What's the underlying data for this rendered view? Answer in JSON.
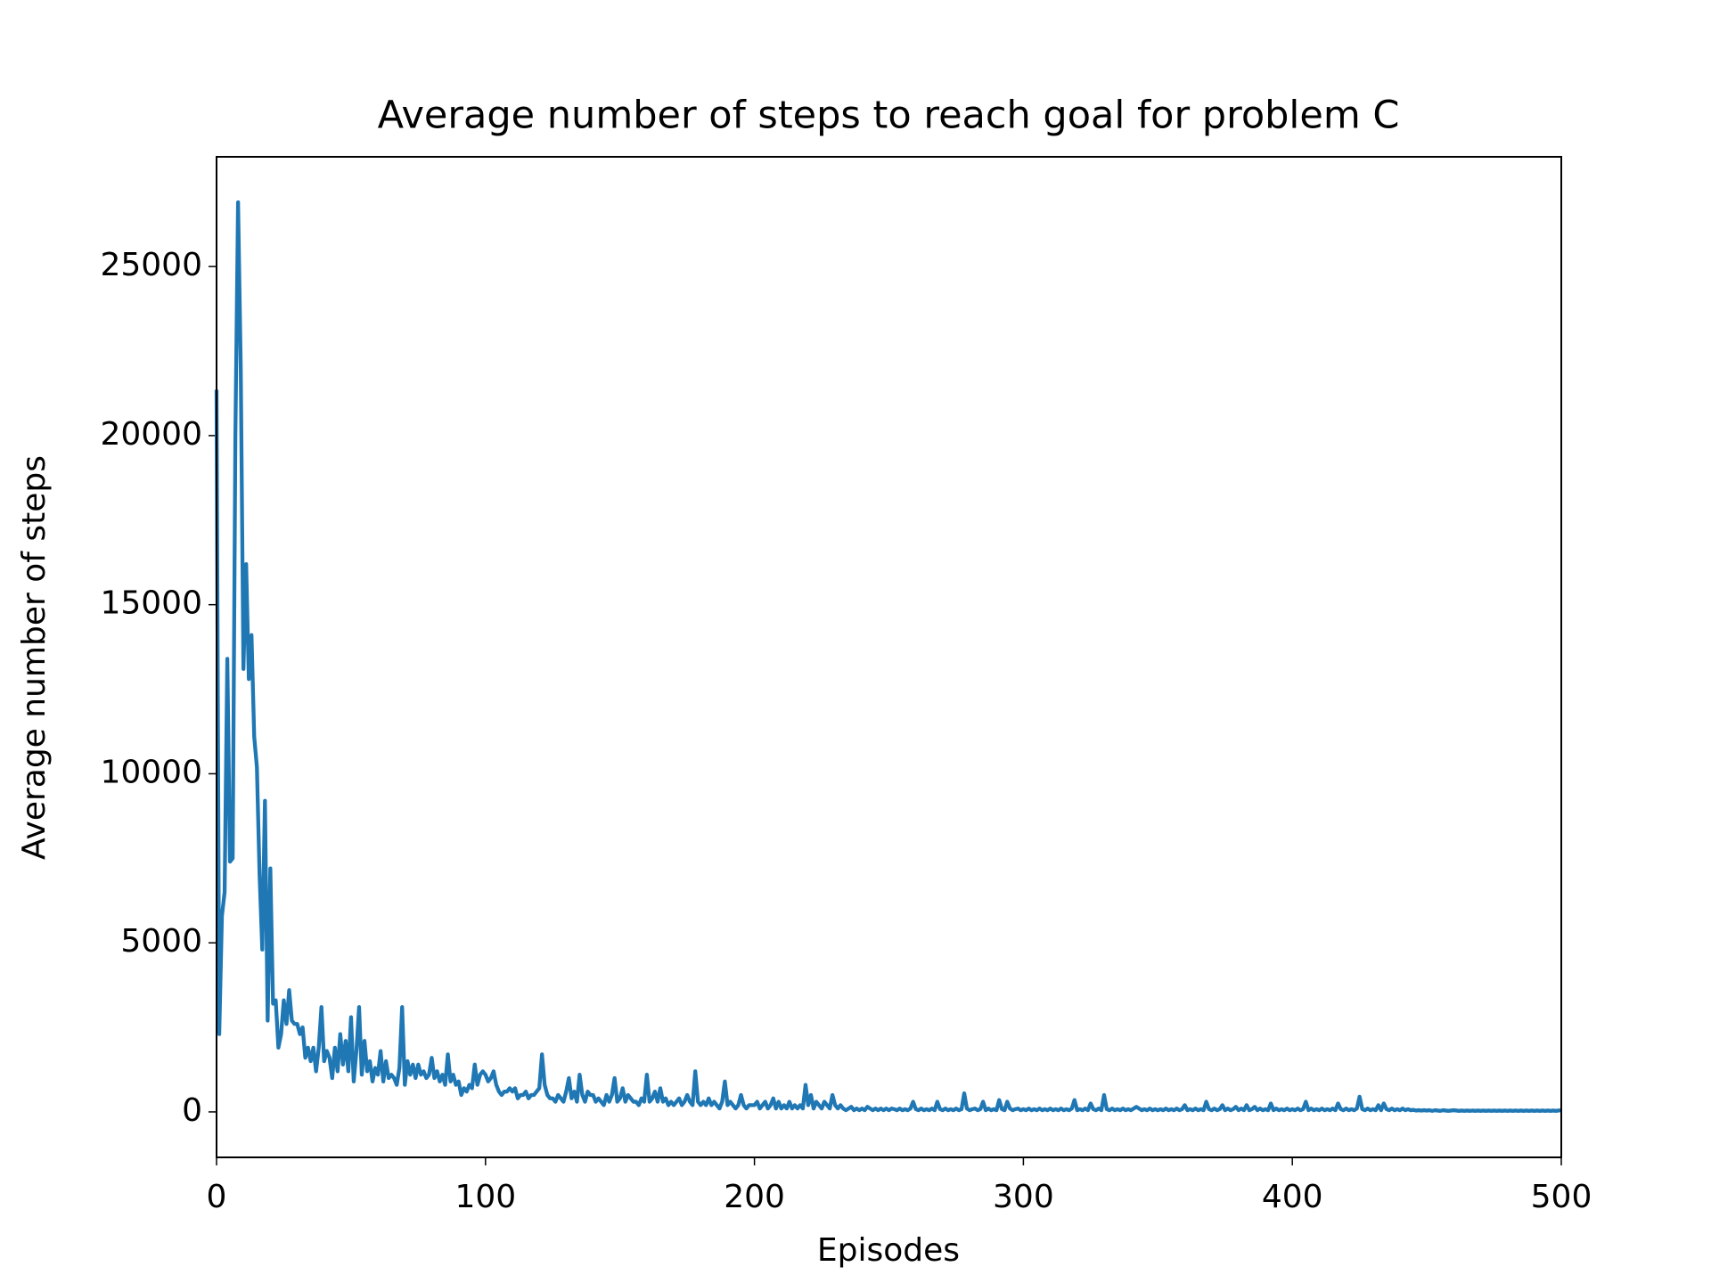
{
  "chart_data": {
    "type": "line",
    "title": "Average number of steps to reach goal for problem C",
    "x_label": "Episodes",
    "y_label": "Average number of steps",
    "xlim": [
      0,
      500
    ],
    "xticks": [
      0,
      100,
      200,
      300,
      400,
      500
    ],
    "ylim": [
      -1345,
      28245
    ],
    "yticks": [
      0,
      5000,
      10000,
      15000,
      20000,
      25000
    ],
    "grid": false,
    "series": [
      {
        "color": "#1f77b4",
        "x": [
          0,
          1,
          2,
          3,
          4,
          5,
          6,
          7,
          8,
          9,
          10,
          11,
          12,
          13,
          14,
          15,
          16,
          17,
          18,
          19,
          20,
          21,
          22,
          23,
          24,
          25,
          26,
          27,
          28,
          29,
          30,
          31,
          32,
          33,
          34,
          35,
          36,
          37,
          38,
          39,
          40,
          41,
          42,
          43,
          44,
          45,
          46,
          47,
          48,
          49,
          50,
          51,
          52,
          53,
          54,
          55,
          56,
          57,
          58,
          59,
          60,
          61,
          62,
          63,
          64,
          65,
          66,
          67,
          68,
          69,
          70,
          71,
          72,
          73,
          74,
          75,
          76,
          77,
          78,
          79,
          80,
          81,
          82,
          83,
          84,
          85,
          86,
          87,
          88,
          89,
          90,
          91,
          92,
          93,
          94,
          95,
          96,
          97,
          98,
          99,
          100,
          101,
          102,
          103,
          104,
          105,
          106,
          107,
          108,
          109,
          110,
          111,
          112,
          113,
          114,
          115,
          116,
          117,
          118,
          119,
          120,
          121,
          122,
          123,
          124,
          125,
          126,
          127,
          128,
          129,
          130,
          131,
          132,
          133,
          134,
          135,
          136,
          137,
          138,
          139,
          140,
          141,
          142,
          143,
          144,
          145,
          146,
          147,
          148,
          149,
          150,
          151,
          152,
          153,
          154,
          155,
          156,
          157,
          158,
          159,
          160,
          161,
          162,
          163,
          164,
          165,
          166,
          167,
          168,
          169,
          170,
          171,
          172,
          173,
          174,
          175,
          176,
          177,
          178,
          179,
          180,
          181,
          182,
          183,
          184,
          185,
          186,
          187,
          188,
          189,
          190,
          191,
          192,
          193,
          194,
          195,
          196,
          197,
          198,
          199,
          200,
          201,
          202,
          203,
          204,
          205,
          206,
          207,
          208,
          209,
          210,
          211,
          212,
          213,
          214,
          215,
          216,
          217,
          218,
          219,
          220,
          221,
          222,
          223,
          224,
          225,
          226,
          227,
          228,
          229,
          230,
          231,
          232,
          233,
          234,
          235,
          236,
          237,
          238,
          239,
          240,
          241,
          242,
          243,
          244,
          245,
          246,
          247,
          248,
          249,
          250,
          251,
          252,
          253,
          254,
          255,
          256,
          257,
          258,
          259,
          260,
          261,
          262,
          263,
          264,
          265,
          266,
          267,
          268,
          269,
          270,
          271,
          272,
          273,
          274,
          275,
          276,
          277,
          278,
          279,
          280,
          281,
          282,
          283,
          284,
          285,
          286,
          287,
          288,
          289,
          290,
          291,
          292,
          293,
          294,
          295,
          296,
          297,
          298,
          299,
          300,
          301,
          302,
          303,
          304,
          305,
          306,
          307,
          308,
          309,
          310,
          311,
          312,
          313,
          314,
          315,
          316,
          317,
          318,
          319,
          320,
          321,
          322,
          323,
          324,
          325,
          326,
          327,
          328,
          329,
          330,
          331,
          332,
          333,
          334,
          335,
          336,
          337,
          338,
          339,
          340,
          341,
          342,
          343,
          344,
          345,
          346,
          347,
          348,
          349,
          350,
          351,
          352,
          353,
          354,
          355,
          356,
          357,
          358,
          359,
          360,
          361,
          362,
          363,
          364,
          365,
          366,
          367,
          368,
          369,
          370,
          371,
          372,
          373,
          374,
          375,
          376,
          377,
          378,
          379,
          380,
          381,
          382,
          383,
          384,
          385,
          386,
          387,
          388,
          389,
          390,
          391,
          392,
          393,
          394,
          395,
          396,
          397,
          398,
          399,
          400,
          401,
          402,
          403,
          404,
          405,
          406,
          407,
          408,
          409,
          410,
          411,
          412,
          413,
          414,
          415,
          416,
          417,
          418,
          419,
          420,
          421,
          422,
          423,
          424,
          425,
          426,
          427,
          428,
          429,
          430,
          431,
          432,
          433,
          434,
          435,
          436,
          437,
          438,
          439,
          440,
          441,
          442,
          443,
          444,
          445,
          446,
          447,
          448,
          449,
          450,
          451,
          452,
          453,
          454,
          455,
          456,
          457,
          458,
          459,
          460,
          461,
          462,
          463,
          464,
          465,
          466,
          467,
          468,
          469,
          470,
          471,
          472,
          473,
          474,
          475,
          476,
          477,
          478,
          479,
          480,
          481,
          482,
          483,
          484,
          485,
          486,
          487,
          488,
          489,
          490,
          491,
          492,
          493,
          494,
          495,
          496,
          497,
          498,
          499
        ],
        "values": [
          21300,
          2300,
          5800,
          6500,
          13400,
          7400,
          7500,
          20000,
          26900,
          22000,
          13100,
          16200,
          12800,
          14100,
          11100,
          10200,
          7000,
          4800,
          9200,
          2700,
          7200,
          3200,
          3300,
          1900,
          2300,
          3300,
          2600,
          3600,
          2700,
          2600,
          2600,
          2300,
          2500,
          1600,
          1900,
          1500,
          1900,
          1200,
          1900,
          3100,
          1500,
          1800,
          1600,
          1000,
          1900,
          1200,
          2300,
          1400,
          2100,
          1200,
          2800,
          900,
          1800,
          3100,
          1100,
          2100,
          1200,
          1500,
          900,
          1300,
          1100,
          1800,
          900,
          1500,
          1000,
          1100,
          1000,
          800,
          1300,
          3100,
          800,
          1500,
          1100,
          1400,
          1000,
          1400,
          1100,
          1200,
          1000,
          1100,
          1600,
          1000,
          1200,
          900,
          1100,
          800,
          1700,
          900,
          1100,
          800,
          900,
          500,
          700,
          600,
          800,
          700,
          1400,
          800,
          1100,
          1200,
          1100,
          900,
          1000,
          1200,
          800,
          600,
          500,
          600,
          600,
          700,
          600,
          700,
          400,
          500,
          500,
          600,
          400,
          500,
          500,
          600,
          700,
          1700,
          800,
          500,
          400,
          400,
          300,
          500,
          400,
          300,
          600,
          1000,
          400,
          600,
          300,
          1100,
          500,
          300,
          600,
          500,
          500,
          300,
          400,
          300,
          200,
          500,
          300,
          500,
          1000,
          300,
          400,
          700,
          300,
          500,
          400,
          300,
          300,
          200,
          400,
          300,
          1100,
          300,
          400,
          600,
          300,
          700,
          300,
          400,
          200,
          300,
          200,
          300,
          400,
          200,
          300,
          500,
          300,
          200,
          1200,
          300,
          200,
          300,
          200,
          400,
          200,
          300,
          200,
          100,
          300,
          900,
          200,
          300,
          200,
          100,
          200,
          500,
          200,
          100,
          200,
          200,
          200,
          300,
          100,
          200,
          300,
          100,
          200,
          400,
          100,
          300,
          100,
          200,
          100,
          300,
          100,
          200,
          100,
          200,
          100,
          800,
          200,
          500,
          100,
          300,
          200,
          100,
          300,
          200,
          100,
          500,
          200,
          100,
          200,
          100,
          50,
          100,
          150,
          50,
          100,
          50,
          100,
          50,
          150,
          100,
          50,
          100,
          50,
          100,
          50,
          100,
          50,
          100,
          80,
          50,
          100,
          50,
          80,
          50,
          100,
          300,
          80,
          50,
          100,
          50,
          80,
          50,
          100,
          50,
          300,
          80,
          50,
          100,
          50,
          80,
          50,
          100,
          50,
          80,
          550,
          100,
          50,
          80,
          100,
          50,
          80,
          300,
          50,
          100,
          50,
          80,
          50,
          350,
          80,
          50,
          300,
          100,
          50,
          80,
          100,
          50,
          80,
          50,
          100,
          50,
          80,
          50,
          100,
          50,
          80,
          50,
          100,
          50,
          80,
          50,
          100,
          50,
          80,
          50,
          100,
          350,
          50,
          80,
          50,
          100,
          50,
          250,
          80,
          50,
          100,
          50,
          500,
          80,
          50,
          100,
          50,
          80,
          50,
          100,
          50,
          80,
          50,
          100,
          150,
          100,
          50,
          80,
          50,
          100,
          50,
          80,
          50,
          80,
          50,
          100,
          50,
          80,
          50,
          100,
          50,
          80,
          200,
          50,
          80,
          50,
          100,
          50,
          80,
          50,
          300,
          80,
          50,
          100,
          50,
          80,
          200,
          50,
          100,
          50,
          80,
          150,
          50,
          100,
          50,
          200,
          50,
          80,
          150,
          50,
          100,
          50,
          80,
          50,
          250,
          50,
          100,
          50,
          80,
          50,
          100,
          50,
          80,
          50,
          100,
          50,
          80,
          300,
          50,
          100,
          50,
          80,
          50,
          100,
          50,
          80,
          50,
          100,
          50,
          250,
          80,
          50,
          100,
          50,
          80,
          50,
          100,
          450,
          80,
          50,
          100,
          50,
          80,
          50,
          200,
          50,
          250,
          80,
          50,
          100,
          50,
          80,
          50,
          100,
          50,
          80,
          50,
          60,
          40,
          50,
          40,
          50,
          40,
          50,
          30,
          50,
          40,
          30,
          50,
          40,
          30,
          40,
          50,
          40,
          30,
          40,
          30,
          40,
          30,
          40,
          30,
          40,
          30,
          40,
          30,
          40,
          30,
          40,
          30,
          40,
          30,
          40,
          30,
          40,
          30,
          40,
          30,
          40,
          30,
          40,
          30,
          40,
          30,
          40,
          30,
          40,
          30,
          40,
          30,
          40,
          30,
          40
        ]
      }
    ]
  }
}
